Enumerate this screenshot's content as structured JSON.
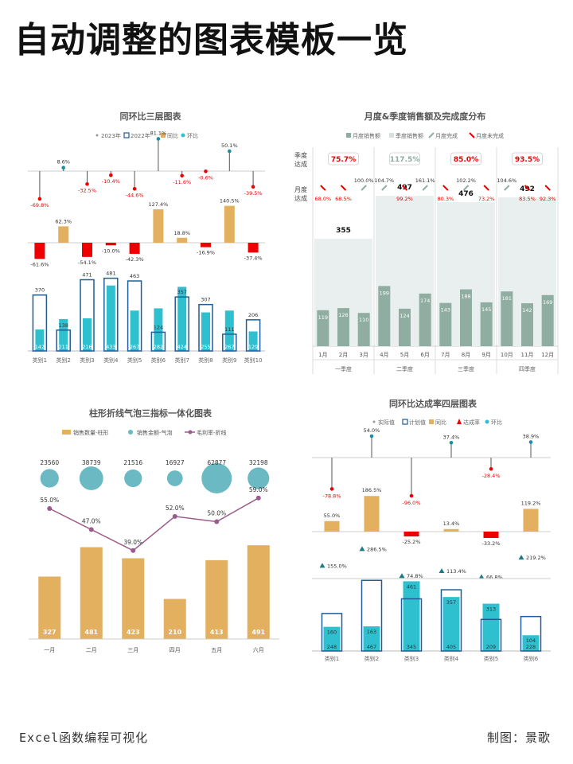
{
  "page": {
    "title": "自动调整的图表模板一览",
    "footer_left": "Excel函数编程可视化",
    "footer_right": "制图：景歌"
  },
  "colors": {
    "gold": "#e2b05e",
    "teal": "#2ec0cf",
    "navy": "#1f5c99",
    "red": "#ee0000",
    "dark_teal": "#1a8fa3",
    "green": "#8fada1",
    "panel_bg": "#e8efee",
    "bubble": "#6bb9c3",
    "purple": "#9c5b8d",
    "tri": "#1f7a86"
  },
  "chart_data": [
    {
      "id": "chart1",
      "type": "bar",
      "title": "同环比三层图表",
      "legend": [
        "2023年",
        "2022年",
        "同比",
        "环比"
      ],
      "categories": [
        "类别1",
        "类别2",
        "类别3",
        "类别4",
        "类别5",
        "类别6",
        "类别7",
        "类别8",
        "类别9",
        "类别10"
      ],
      "huanbi": [
        -69.8,
        8.6,
        -32.5,
        -10.4,
        -44.6,
        81.1,
        -11.6,
        -0.6,
        50.1,
        -39.5
      ],
      "huanbi_labels": [
        "-69.8%",
        "8.6%",
        "-32.5%",
        "-10.4%",
        "-44.6%",
        "81.1%",
        "-11.6%",
        "-0.6%",
        "50.1%",
        "-39.5%"
      ],
      "tongbi": [
        -61.6,
        62.3,
        -54.1,
        -10.0,
        -42.3,
        127.4,
        18.8,
        -16.9,
        140.5,
        -37.4
      ],
      "tongbi_labels": [
        "-61.6%",
        "62.3%",
        "-54.1%",
        "-10.0%",
        "-42.3%",
        "127.4%",
        "18.8%",
        "-16.9%",
        "140.5%",
        "-37.4%"
      ],
      "y2023": [
        142,
        211,
        216,
        433,
        267,
        282,
        424,
        255,
        267,
        129
      ],
      "y2022": [
        370,
        138,
        471,
        481,
        463,
        124,
        357,
        307,
        111,
        206
      ]
    },
    {
      "id": "chart2",
      "type": "bar",
      "title": "月度&季度销售额及完成度分布",
      "legend": [
        "月度销售额",
        "季度销售额",
        "月度完成",
        "月度未完成"
      ],
      "row_label_season": "季度达成",
      "row_label_month": "月度达成",
      "quarters": [
        "一季度",
        "二季度",
        "三季度",
        "四季度"
      ],
      "quarter_values": [
        355,
        497,
        476,
        492
      ],
      "quarter_rates": [
        "75.7%",
        "117.5%",
        "85.0%",
        "93.5%"
      ],
      "quarter_done": [
        false,
        true,
        false,
        false
      ],
      "months": [
        "1月",
        "2月",
        "3月",
        "4月",
        "5月",
        "6月",
        "7月",
        "8月",
        "9月",
        "10月",
        "11月",
        "12月"
      ],
      "month_values": [
        119,
        126,
        110,
        199,
        124,
        174,
        143,
        188,
        145,
        181,
        142,
        169
      ],
      "month_rates": [
        "68.0%",
        "68.5%",
        "100.0%",
        "104.7%",
        "99.2%",
        "161.1%",
        "80.3%",
        "102.2%",
        "73.2%",
        "104.6%",
        "83.5%",
        "92.3%"
      ],
      "month_done": [
        false,
        false,
        true,
        true,
        false,
        true,
        false,
        true,
        false,
        true,
        false,
        false
      ]
    },
    {
      "id": "chart3",
      "type": "bar",
      "title": "柱形折线气泡三指标一体化图表",
      "legend": [
        "销售数量-柱形",
        "销售金额-气泡",
        "毛利率-折线"
      ],
      "categories": [
        "一月",
        "二月",
        "三月",
        "四月",
        "五月",
        "六月"
      ],
      "qty": [
        327,
        481,
        423,
        210,
        413,
        491
      ],
      "amount": [
        23560,
        38739,
        21516,
        16927,
        62877,
        32198
      ],
      "margin": [
        55.0,
        47.0,
        39.0,
        52.0,
        50.0,
        59.0
      ],
      "margin_labels": [
        "55.0%",
        "47.0%",
        "39.0%",
        "52.0%",
        "50.0%",
        "59.0%"
      ]
    },
    {
      "id": "chart4",
      "type": "bar",
      "title": "同环比达成率四层图表",
      "legend": [
        "实际值",
        "计划值",
        "同比",
        "达成率",
        "环比"
      ],
      "categories": [
        "类别1",
        "类别2",
        "类别3",
        "类别4",
        "类别5",
        "类别6"
      ],
      "huanbi": [
        -78.8,
        54.0,
        -96.0,
        37.4,
        -28.4,
        38.9
      ],
      "huanbi_labels": [
        "-78.8%",
        "54.0%",
        "-96.0%",
        "37.4%",
        "-28.4%",
        "38.9%"
      ],
      "tongbi": [
        55.0,
        186.5,
        -25.2,
        13.4,
        -33.2,
        119.2
      ],
      "tongbi_labels": [
        "55.0%",
        "186.5%",
        "-25.2%",
        "13.4%",
        "-33.2%",
        "119.2%"
      ],
      "rate": [
        155.0,
        286.5,
        74.8,
        113.4,
        66.8,
        219.2
      ],
      "rate_labels": [
        "155.0%",
        "286.5%",
        "74.8%",
        "113.4%",
        "66.8%",
        "219.2%"
      ],
      "actual": [
        160,
        163,
        461,
        357,
        313,
        104
      ],
      "plan": [
        248,
        467,
        345,
        405,
        209,
        228
      ]
    }
  ]
}
